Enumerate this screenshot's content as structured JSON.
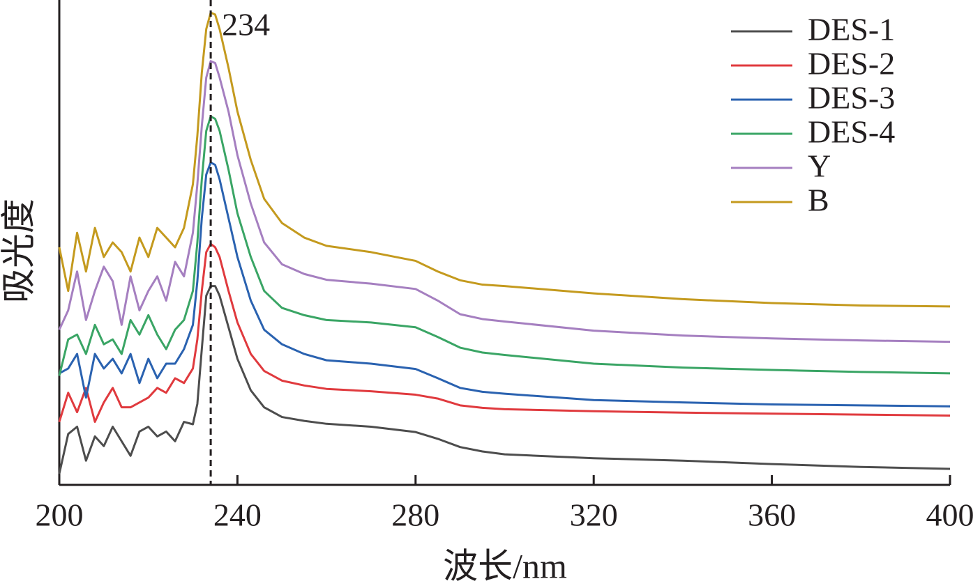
{
  "chart_data": {
    "type": "line",
    "xlabel": "波长/nm",
    "ylabel": "吸光度",
    "x": [
      200,
      202,
      204,
      206,
      208,
      210,
      212,
      214,
      216,
      218,
      220,
      222,
      224,
      226,
      228,
      230,
      231,
      232,
      233,
      234,
      235,
      236,
      238,
      240,
      243,
      246,
      250,
      255,
      260,
      270,
      280,
      285,
      290,
      295,
      300,
      320,
      340,
      360,
      380,
      400
    ],
    "series": [
      {
        "name": "DES-1",
        "color": "#4d4d4d",
        "values": [
          2.3,
          10.5,
          12,
          5,
          10,
          8,
          12,
          9,
          6,
          11,
          12,
          10,
          11,
          9,
          13,
          12.5,
          16.7,
          28,
          39,
          41,
          41,
          39,
          32.5,
          26,
          19.5,
          16,
          14,
          13.2,
          12.6,
          12,
          10.9,
          9.5,
          7.8,
          6.9,
          6.3,
          5.5,
          5,
          4.3,
          3.7,
          3.3
        ]
      },
      {
        "name": "DES-2",
        "color": "#e03a3e",
        "values": [
          13,
          19,
          15,
          20,
          13,
          17,
          20,
          16,
          16,
          17,
          18,
          20,
          19,
          22,
          21,
          24,
          30,
          40,
          48,
          49.7,
          49,
          47,
          40,
          33.5,
          27,
          23.5,
          21.5,
          20.5,
          19.8,
          19.3,
          18.6,
          17.8,
          16.4,
          15.9,
          15.6,
          15.2,
          14.9,
          14.7,
          14.5,
          14.3
        ]
      },
      {
        "name": "DES-3",
        "color": "#2a62b0",
        "values": [
          23,
          24,
          27,
          18,
          27,
          24,
          26,
          23,
          27,
          21,
          26,
          22,
          25,
          25,
          28,
          33,
          42,
          55,
          64,
          66.5,
          66,
          63,
          55,
          47,
          38,
          32,
          29,
          27,
          25.7,
          25,
          23.9,
          22,
          20,
          19.2,
          18.8,
          17.5,
          17,
          16.6,
          16.4,
          16.2
        ]
      },
      {
        "name": "DES-4",
        "color": "#3aa565",
        "values": [
          22.5,
          30,
          31,
          27,
          33,
          29,
          30,
          27,
          34,
          31,
          35,
          31,
          28,
          32,
          34,
          40,
          50,
          63,
          73,
          76,
          75.5,
          73,
          65,
          56,
          47,
          40,
          36.5,
          35,
          34,
          33.5,
          32.5,
          30.5,
          28.3,
          27.3,
          26.8,
          25,
          24.2,
          23.7,
          23.3,
          23
        ]
      },
      {
        "name": "Y",
        "color": "#a57fc0",
        "values": [
          32,
          36,
          44,
          34,
          40,
          45,
          42,
          33,
          43,
          36,
          40,
          43,
          38,
          46,
          43,
          52,
          62,
          74,
          84,
          87.4,
          87,
          84,
          77,
          68,
          58,
          50,
          45.5,
          43.5,
          42.3,
          41.5,
          40.4,
          38,
          35.2,
          34.2,
          33.7,
          31.8,
          30.8,
          30.2,
          29.8,
          29.5
        ]
      },
      {
        "name": "B",
        "color": "#c49a1e",
        "values": [
          49,
          40,
          52,
          44,
          53,
          47,
          50,
          48,
          44,
          51,
          47,
          53,
          51,
          49,
          53,
          62,
          72,
          85,
          94,
          97.4,
          97,
          94,
          86,
          77,
          67,
          59,
          54,
          51,
          49.3,
          48,
          46.2,
          44,
          42.2,
          41.3,
          41,
          39.5,
          38.3,
          37.5,
          37,
          36.8
        ]
      }
    ],
    "xlim": [
      200,
      400
    ],
    "xticks": [
      200,
      240,
      280,
      320,
      360,
      400
    ],
    "ylim": [
      0,
      100
    ],
    "vline": 234,
    "legend": "upper right"
  }
}
